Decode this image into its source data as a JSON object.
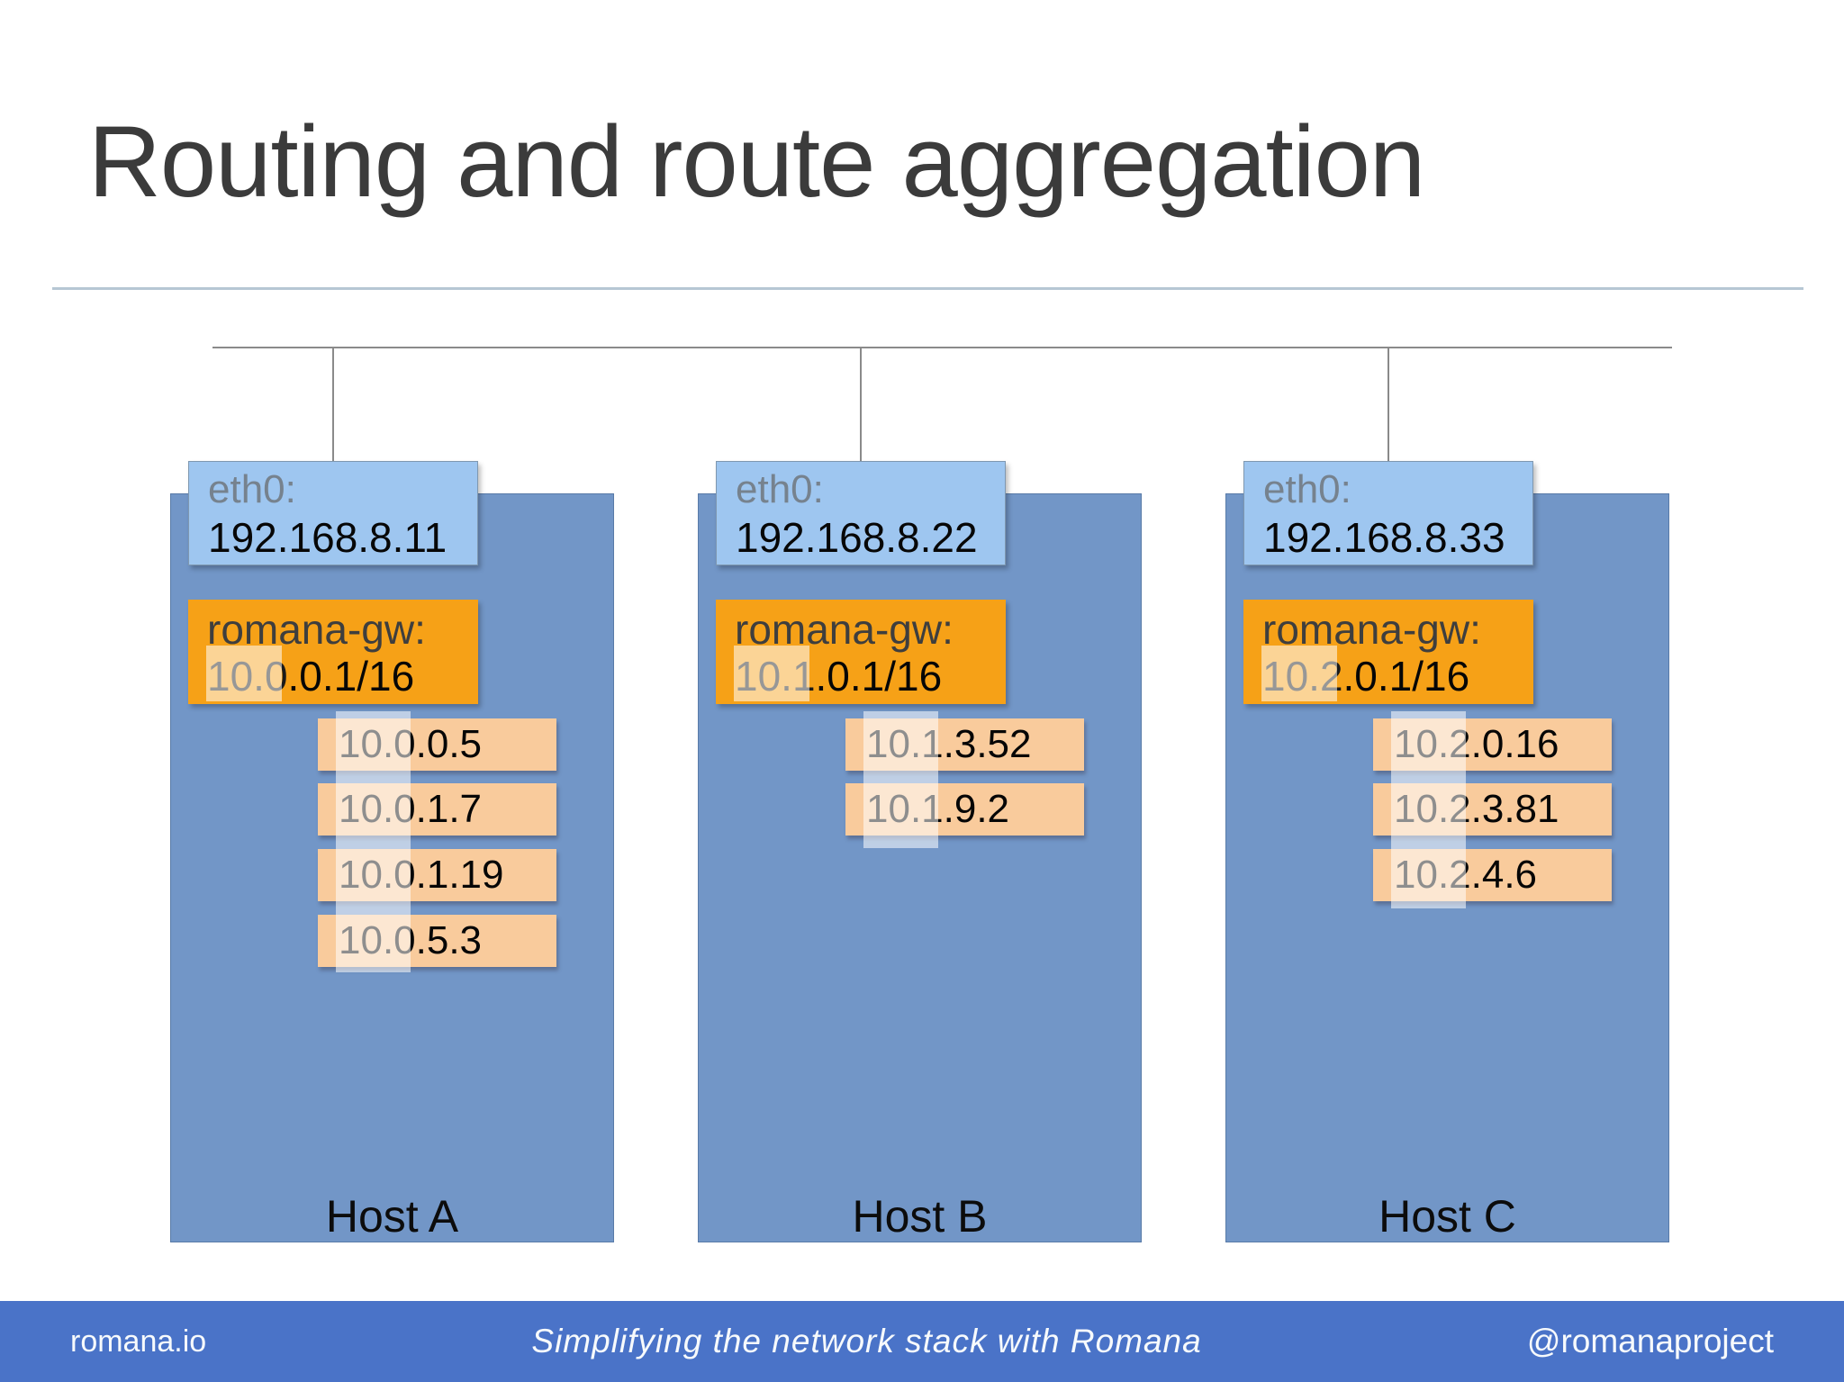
{
  "title": "Routing and route aggregation",
  "hosts": [
    {
      "label": "Host A",
      "eth0_label": "eth0:",
      "eth0_ip": "192.168.8.11",
      "gw_label": "romana-gw:",
      "gw_prefix": "10.0",
      "gw_suffix": ".0.1/16",
      "endpoints": [
        {
          "prefix": "10.0",
          "suffix": ".0.5"
        },
        {
          "prefix": "10.0",
          "suffix": ".1.7"
        },
        {
          "prefix": "10.0",
          "suffix": ".1.19"
        },
        {
          "prefix": "10.0",
          "suffix": ".5.3"
        }
      ]
    },
    {
      "label": "Host B",
      "eth0_label": "eth0:",
      "eth0_ip": "192.168.8.22",
      "gw_label": "romana-gw:",
      "gw_prefix": "10.1",
      "gw_suffix": ".0.1/16",
      "endpoints": [
        {
          "prefix": "10.1",
          "suffix": ".3.52"
        },
        {
          "prefix": "10.1",
          "suffix": ".9.2"
        }
      ]
    },
    {
      "label": "Host C",
      "eth0_label": "eth0:",
      "eth0_ip": "192.168.8.33",
      "gw_label": "romana-gw:",
      "gw_prefix": "10.2",
      "gw_suffix": ".0.1/16",
      "endpoints": [
        {
          "prefix": "10.2",
          "suffix": ".0.16"
        },
        {
          "prefix": "10.2",
          "suffix": ".3.81"
        },
        {
          "prefix": "10.2",
          "suffix": ".4.6"
        }
      ]
    }
  ],
  "footer": {
    "left": "romana.io",
    "center": "Simplifying the network stack with Romana",
    "right": "@romanaproject"
  },
  "colors": {
    "title_text": "#3B3B3B",
    "host_box": "#7296C7",
    "eth0_box": "#9EC6F0",
    "gateway_box": "#F6A117",
    "endpoint_chip": "#F9CB9C",
    "highlight_band": "rgba(255,255,255,0.55)",
    "connector_line": "#8A8A8A",
    "divider_line": "#B6C7D4",
    "footer_bar": "#4A73C8"
  }
}
